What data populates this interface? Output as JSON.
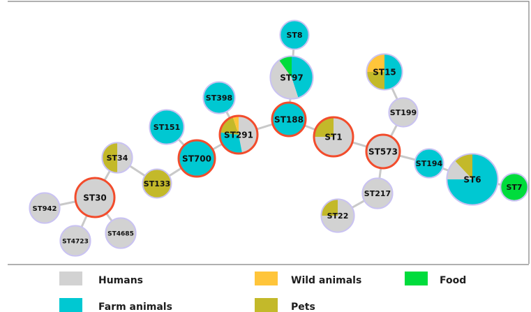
{
  "colors": {
    "Humans": "#d2d2d2",
    "Wild animals": "#ffc53a",
    "Food": "#00dc3c",
    "Farm animals": "#00c8d2",
    "Pets": "#c3b92a",
    "edge": "#c9c9c9",
    "border_default": "#c9c2f2",
    "border_founder": "#f24c2c"
  },
  "legend": [
    {
      "label": "Humans",
      "color": "#d2d2d2"
    },
    {
      "label": "Wild animals",
      "color": "#ffc53a"
    },
    {
      "label": "Food",
      "color": "#00dc3c"
    },
    {
      "label": "Farm animals",
      "color": "#00c8d2"
    },
    {
      "label": "Pets",
      "color": "#c3b92a"
    }
  ],
  "nodes": [
    {
      "id": "ST8",
      "founder": false,
      "slices": [
        [
          "Farm animals",
          1
        ]
      ]
    },
    {
      "id": "ST97",
      "founder": false,
      "slices": [
        [
          "Farm animals",
          0.45
        ],
        [
          "Humans",
          0.45
        ],
        [
          "Food",
          0.1
        ]
      ]
    },
    {
      "id": "ST15",
      "founder": false,
      "slices": [
        [
          "Farm animals",
          0.5
        ],
        [
          "Pets",
          0.25
        ],
        [
          "Wild animals",
          0.25
        ]
      ]
    },
    {
      "id": "ST199",
      "founder": false,
      "slices": [
        [
          "Humans",
          1
        ]
      ]
    },
    {
      "id": "ST398",
      "founder": false,
      "slices": [
        [
          "Farm animals",
          1
        ]
      ]
    },
    {
      "id": "ST151",
      "founder": false,
      "slices": [
        [
          "Farm animals",
          1
        ]
      ]
    },
    {
      "id": "ST291",
      "founder": true,
      "slices": [
        [
          "Humans",
          0.47
        ],
        [
          "Farm animals",
          0.3
        ],
        [
          "Pets",
          0.18
        ],
        [
          "Wild animals",
          0.05
        ]
      ]
    },
    {
      "id": "ST188",
      "founder": true,
      "slices": [
        [
          "Farm animals",
          1
        ]
      ]
    },
    {
      "id": "ST1",
      "founder": true,
      "slices": [
        [
          "Humans",
          0.75
        ],
        [
          "Pets",
          0.25
        ]
      ]
    },
    {
      "id": "ST573",
      "founder": true,
      "slices": [
        [
          "Humans",
          1
        ]
      ]
    },
    {
      "id": "ST194",
      "founder": false,
      "slices": [
        [
          "Farm animals",
          1
        ]
      ]
    },
    {
      "id": "ST6",
      "founder": false,
      "slices": [
        [
          "Farm animals",
          0.75
        ],
        [
          "Humans",
          0.13
        ],
        [
          "Pets",
          0.12
        ]
      ]
    },
    {
      "id": "ST7",
      "founder": false,
      "slices": [
        [
          "Food",
          1
        ]
      ]
    },
    {
      "id": "ST700",
      "founder": true,
      "slices": [
        [
          "Farm animals",
          1
        ]
      ]
    },
    {
      "id": "ST34",
      "founder": false,
      "slices": [
        [
          "Humans",
          0.5
        ],
        [
          "Pets",
          0.5
        ]
      ]
    },
    {
      "id": "ST133",
      "founder": false,
      "slices": [
        [
          "Pets",
          1
        ]
      ]
    },
    {
      "id": "ST30",
      "founder": true,
      "slices": [
        [
          "Humans",
          1
        ]
      ]
    },
    {
      "id": "ST942",
      "founder": false,
      "slices": [
        [
          "Humans",
          1
        ]
      ]
    },
    {
      "id": "ST4723",
      "founder": false,
      "slices": [
        [
          "Humans",
          1
        ]
      ]
    },
    {
      "id": "ST4685",
      "founder": false,
      "slices": [
        [
          "Humans",
          1
        ]
      ]
    },
    {
      "id": "ST217",
      "founder": false,
      "slices": [
        [
          "Humans",
          1
        ]
      ]
    },
    {
      "id": "ST22",
      "founder": false,
      "slices": [
        [
          "Humans",
          0.75
        ],
        [
          "Pets",
          0.25
        ]
      ]
    }
  ],
  "edges": [
    [
      "ST8",
      "ST97"
    ],
    [
      "ST97",
      "ST188"
    ],
    [
      "ST188",
      "ST291"
    ],
    [
      "ST188",
      "ST1"
    ],
    [
      "ST1",
      "ST573"
    ],
    [
      "ST573",
      "ST199"
    ],
    [
      "ST199",
      "ST15"
    ],
    [
      "ST573",
      "ST194"
    ],
    [
      "ST194",
      "ST6"
    ],
    [
      "ST6",
      "ST7"
    ],
    [
      "ST573",
      "ST217"
    ],
    [
      "ST217",
      "ST22"
    ],
    [
      "ST291",
      "ST398"
    ],
    [
      "ST291",
      "ST700"
    ],
    [
      "ST700",
      "ST151"
    ],
    [
      "ST700",
      "ST133"
    ],
    [
      "ST133",
      "ST34"
    ],
    [
      "ST34",
      "ST30"
    ],
    [
      "ST30",
      "ST942"
    ],
    [
      "ST30",
      "ST4723"
    ],
    [
      "ST30",
      "ST4685"
    ]
  ]
}
